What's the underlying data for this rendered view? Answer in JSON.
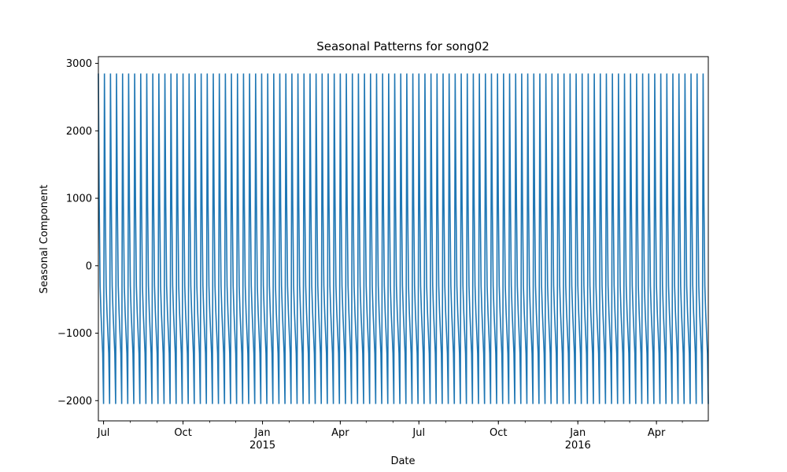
{
  "chart_data": {
    "type": "line",
    "title": "Seasonal Patterns for song02",
    "xlabel": "Date",
    "ylabel": "Seasonal Component",
    "x_range": [
      "2014-06-25",
      "2016-05-31"
    ],
    "ylim": [
      -2300,
      3100
    ],
    "y_ticks": [
      -2000,
      -1000,
      0,
      1000,
      2000,
      3000
    ],
    "y_tick_labels": [
      "−2000",
      "−1000",
      "0",
      "1000",
      "2000",
      "3000"
    ],
    "x_ticks": [
      {
        "date": "2014-07-01",
        "label": "Jul",
        "sublabel": ""
      },
      {
        "date": "2014-10-01",
        "label": "Oct",
        "sublabel": ""
      },
      {
        "date": "2015-01-01",
        "label": "Jan",
        "sublabel": "2015"
      },
      {
        "date": "2015-04-01",
        "label": "Apr",
        "sublabel": ""
      },
      {
        "date": "2015-07-01",
        "label": "Jul",
        "sublabel": ""
      },
      {
        "date": "2015-10-01",
        "label": "Oct",
        "sublabel": ""
      },
      {
        "date": "2016-01-01",
        "label": "Jan",
        "sublabel": "2016"
      },
      {
        "date": "2016-04-01",
        "label": "Apr",
        "sublabel": ""
      }
    ],
    "series": [
      {
        "color": "#1f77b4",
        "period_days": 7,
        "cycle_values": [
          2850,
          900,
          -300,
          -700,
          -1000,
          -1300,
          -2050
        ],
        "start_date": "2014-06-25",
        "end_date": "2016-05-31"
      }
    ],
    "grid": false,
    "legend": "none"
  }
}
